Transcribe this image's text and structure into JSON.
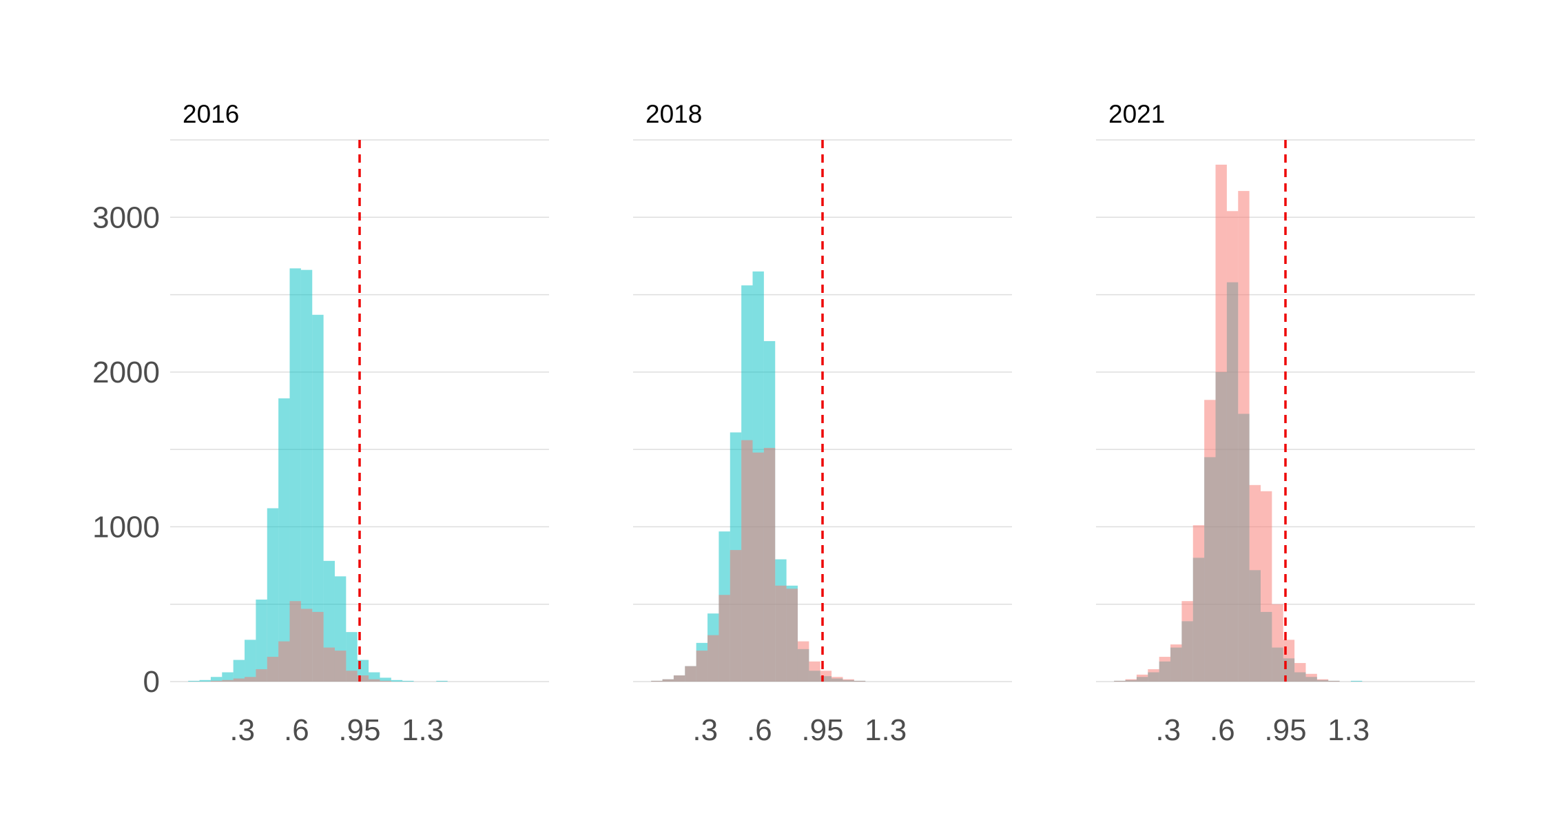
{
  "chart_data": {
    "type": "bar",
    "subtype": "overlaid-histogram-facets",
    "bin_width": 0.0625,
    "xlim": [
      -0.1,
      2.0
    ],
    "ylim": [
      0,
      3500
    ],
    "yticks": [
      0,
      1000,
      2000,
      3000
    ],
    "ytick_labels": [
      "0",
      "1000",
      "2000",
      "3000"
    ],
    "xticks": [
      0.3,
      0.6,
      0.95,
      1.3
    ],
    "xtick_labels": [
      ".3",
      ".6",
      ".95",
      "1.3"
    ],
    "reference_line": {
      "x": 0.95,
      "color": "#ee0000",
      "style": "dashed"
    },
    "grid": true,
    "legend": "none",
    "series_colors": [
      "#00bfc4",
      "#f8766d"
    ],
    "series_opacity": 0.5,
    "bins": [
      0.0,
      0.0625,
      0.125,
      0.1875,
      0.25,
      0.3125,
      0.375,
      0.4375,
      0.5,
      0.5625,
      0.625,
      0.6875,
      0.75,
      0.8125,
      0.875,
      0.9375,
      1.0,
      1.0625,
      1.125,
      1.1875,
      1.25,
      1.3125,
      1.375,
      1.4375,
      1.5,
      1.5625,
      1.625
    ],
    "panels": [
      {
        "title": "2016",
        "series": [
          {
            "values": [
              5,
              10,
              30,
              60,
              140,
              270,
              530,
              1120,
              1830,
              2670,
              2660,
              2370,
              780,
              680,
              320,
              140,
              60,
              25,
              10,
              5,
              0,
              0,
              5,
              0,
              0,
              0,
              0
            ]
          },
          {
            "values": [
              0,
              0,
              5,
              10,
              20,
              30,
              80,
              160,
              260,
              520,
              470,
              450,
              220,
              200,
              70,
              40,
              15,
              5,
              0,
              0,
              0,
              0,
              0,
              0,
              0,
              0,
              0
            ]
          }
        ]
      },
      {
        "title": "2018",
        "series": [
          {
            "values": [
              5,
              15,
              40,
              100,
              250,
              440,
              970,
              1610,
              2560,
              2650,
              2200,
              790,
              620,
              210,
              70,
              35,
              20,
              10,
              5,
              0,
              0,
              0,
              0,
              0,
              0,
              0,
              0
            ]
          },
          {
            "values": [
              5,
              15,
              40,
              100,
              200,
              300,
              560,
              850,
              1560,
              1480,
              1510,
              620,
              600,
              260,
              130,
              70,
              30,
              15,
              5,
              0,
              0,
              0,
              0,
              0,
              0,
              0,
              0
            ]
          }
        ]
      },
      {
        "title": "2021",
        "series": [
          {
            "values": [
              5,
              10,
              30,
              60,
              130,
              220,
              390,
              800,
              1450,
              2000,
              2580,
              1730,
              720,
              450,
              220,
              150,
              60,
              30,
              10,
              5,
              0,
              5,
              0,
              0,
              0,
              0,
              0
            ]
          },
          {
            "values": [
              5,
              15,
              45,
              80,
              160,
              240,
              520,
              1010,
              1820,
              3340,
              3040,
              3170,
              1270,
              1230,
              500,
              270,
              120,
              50,
              15,
              5,
              0,
              0,
              0,
              0,
              0,
              0,
              0
            ]
          }
        ]
      }
    ]
  }
}
